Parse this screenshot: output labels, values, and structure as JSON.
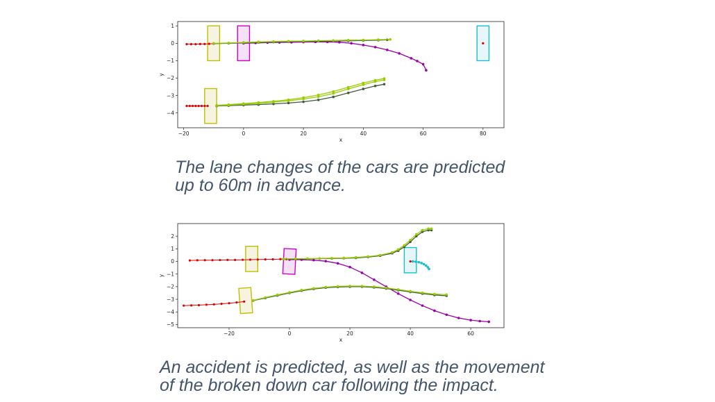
{
  "chart_data": [
    {
      "type": "scatter",
      "xlabel": "x",
      "ylabel": "y",
      "xlim": [
        -22,
        87
      ],
      "ylim": [
        -4.85,
        1.25
      ],
      "xticks": [
        -20,
        0,
        20,
        40,
        60,
        80
      ],
      "yticks": [
        1,
        0,
        -1,
        -2,
        -3,
        -4
      ],
      "xtick_labels": [
        "−20",
        "0",
        "20",
        "40",
        "60",
        "80"
      ],
      "ytick_labels": [
        "1",
        "0",
        "−1",
        "−2",
        "−3",
        "−4"
      ],
      "grid": false,
      "legend": "none",
      "vehicles": [
        {
          "x": -10,
          "y": 0,
          "length": 4,
          "width": 2,
          "angle_deg": 0,
          "color": "#bfbf00",
          "fill": "#f4f2dc"
        },
        {
          "x": 0,
          "y": 0,
          "length": 4,
          "width": 2,
          "angle_deg": 0,
          "color": "#cc00cc",
          "fill": "#f3dcf3"
        },
        {
          "x": 80,
          "y": 0,
          "length": 4,
          "width": 2,
          "angle_deg": 0,
          "color": "#17becf",
          "fill": "#e3f5f8"
        },
        {
          "x": -11,
          "y": -3.6,
          "length": 4,
          "width": 2,
          "angle_deg": 0,
          "color": "#bfbf00",
          "fill": "#f4f2dc"
        }
      ],
      "series": [
        {
          "role": "history",
          "color": "#e00000",
          "points": [
            [
              -19,
              -0.05
            ],
            [
              -17.5,
              -0.05
            ],
            [
              -16,
              -0.05
            ],
            [
              -14.5,
              -0.04
            ],
            [
              -13,
              -0.04
            ],
            [
              -11.5,
              -0.03
            ],
            [
              -10,
              -0.02
            ]
          ]
        },
        {
          "role": "history",
          "color": "#e00000",
          "points": [
            [
              -19,
              -3.6
            ],
            [
              -18,
              -3.6
            ],
            [
              -17,
              -3.6
            ],
            [
              -16,
              -3.6
            ],
            [
              -15,
              -3.6
            ],
            [
              -14,
              -3.6
            ],
            [
              -13,
              -3.6
            ],
            [
              -12,
              -3.6
            ]
          ]
        },
        {
          "role": "history",
          "color": "#e00000",
          "points": [
            [
              80,
              0
            ]
          ]
        },
        {
          "role": "prediction",
          "color": "#9900aa",
          "points": [
            [
              0,
              0
            ],
            [
              4,
              0.02
            ],
            [
              8,
              0.04
            ],
            [
              12,
              0.05
            ],
            [
              16,
              0.06
            ],
            [
              20,
              0.07
            ],
            [
              24,
              0.08
            ],
            [
              28,
              0.08
            ],
            [
              32,
              0.06
            ],
            [
              36,
              0
            ],
            [
              40,
              -0.1
            ],
            [
              44,
              -0.22
            ],
            [
              48,
              -0.38
            ],
            [
              52,
              -0.58
            ],
            [
              56,
              -0.86
            ],
            [
              58,
              -1.02
            ],
            [
              60,
              -1.2
            ],
            [
              61,
              -1.55
            ]
          ]
        },
        {
          "role": "prediction",
          "color": "#3d5a3d",
          "points": [
            [
              -10,
              -0.02
            ],
            [
              -5,
              0
            ],
            [
              0,
              0.02
            ],
            [
              5,
              0.05
            ],
            [
              10,
              0.07
            ],
            [
              15,
              0.09
            ],
            [
              20,
              0.11
            ],
            [
              25,
              0.12
            ],
            [
              30,
              0.13
            ],
            [
              35,
              0.14
            ],
            [
              40,
              0.16
            ],
            [
              45,
              0.18
            ],
            [
              48,
              0.2
            ]
          ]
        },
        {
          "role": "prediction",
          "color": "#99cc00",
          "points": [
            [
              -10,
              0
            ],
            [
              -5,
              0.02
            ],
            [
              0,
              0.05
            ],
            [
              5,
              0.08
            ],
            [
              10,
              0.1
            ],
            [
              15,
              0.12
            ],
            [
              20,
              0.13
            ],
            [
              25,
              0.15
            ],
            [
              30,
              0.16
            ],
            [
              35,
              0.18
            ],
            [
              40,
              0.19
            ],
            [
              45,
              0.21
            ],
            [
              49,
              0.22
            ]
          ]
        },
        {
          "role": "prediction",
          "color": "#3d5a3d",
          "points": [
            [
              -9,
              -3.6
            ],
            [
              -5,
              -3.58
            ],
            [
              0,
              -3.55
            ],
            [
              5,
              -3.52
            ],
            [
              10,
              -3.48
            ],
            [
              15,
              -3.43
            ],
            [
              20,
              -3.36
            ],
            [
              25,
              -3.25
            ],
            [
              30,
              -3.08
            ],
            [
              35,
              -2.85
            ],
            [
              40,
              -2.62
            ],
            [
              44,
              -2.45
            ],
            [
              47,
              -2.35
            ]
          ]
        },
        {
          "role": "prediction",
          "color": "#99cc00",
          "points": [
            [
              -9,
              -3.58
            ],
            [
              -5,
              -3.55
            ],
            [
              0,
              -3.5
            ],
            [
              5,
              -3.45
            ],
            [
              10,
              -3.38
            ],
            [
              15,
              -3.3
            ],
            [
              20,
              -3.2
            ],
            [
              25,
              -3.07
            ],
            [
              30,
              -2.88
            ],
            [
              35,
              -2.62
            ],
            [
              40,
              -2.38
            ],
            [
              44,
              -2.2
            ],
            [
              47,
              -2.1
            ]
          ]
        },
        {
          "role": "prediction",
          "color": "#99cc00",
          "points": [
            [
              -9,
              -3.56
            ],
            [
              -5,
              -3.52
            ],
            [
              0,
              -3.46
            ],
            [
              5,
              -3.4
            ],
            [
              10,
              -3.33
            ],
            [
              15,
              -3.24
            ],
            [
              20,
              -3.12
            ],
            [
              25,
              -2.97
            ],
            [
              30,
              -2.77
            ],
            [
              35,
              -2.52
            ],
            [
              40,
              -2.28
            ],
            [
              44,
              -2.12
            ],
            [
              47,
              -2.02
            ]
          ]
        }
      ]
    },
    {
      "type": "scatter",
      "xlabel": "x",
      "ylabel": "y",
      "xlim": [
        -37,
        71
      ],
      "ylim": [
        -5.25,
        3
      ],
      "xticks": [
        -20,
        0,
        20,
        40,
        60
      ],
      "yticks": [
        2,
        1,
        0,
        -1,
        -2,
        -3,
        -4,
        -5
      ],
      "xtick_labels": [
        "−20",
        "0",
        "20",
        "40",
        "60"
      ],
      "ytick_labels": [
        "2",
        "1",
        "0",
        "−1",
        "−2",
        "−3",
        "−4",
        "−5"
      ],
      "grid": false,
      "legend": "none",
      "vehicles": [
        {
          "x": -12.5,
          "y": 0.2,
          "length": 4,
          "width": 2,
          "angle_deg": 0,
          "color": "#bfbf00",
          "fill": "#f4f2dc"
        },
        {
          "x": 0,
          "y": 0,
          "length": 4,
          "width": 2,
          "angle_deg": -3,
          "color": "#cc00cc",
          "fill": "#f3dcf3"
        },
        {
          "x": 40,
          "y": 0.1,
          "length": 4,
          "width": 2,
          "angle_deg": 0,
          "color": "#17becf",
          "fill": "#e3f5f8"
        },
        {
          "x": -14.5,
          "y": -3.1,
          "length": 4,
          "width": 2,
          "angle_deg": 4,
          "color": "#bfbf00",
          "fill": "#f4f2dc"
        }
      ],
      "series": [
        {
          "role": "history",
          "color": "#e00000",
          "points": [
            [
              -33,
              0.08
            ],
            [
              -30.5,
              0.09
            ],
            [
              -28,
              0.1
            ],
            [
              -25.5,
              0.1
            ],
            [
              -23,
              0.11
            ],
            [
              -20.5,
              0.12
            ],
            [
              -18,
              0.12
            ],
            [
              -15.5,
              0.13
            ],
            [
              -13,
              0.14
            ],
            [
              -10.5,
              0.15
            ],
            [
              -8,
              0.16
            ],
            [
              -5.5,
              0.17
            ],
            [
              -3,
              0.18
            ],
            [
              -1,
              0.18
            ]
          ]
        },
        {
          "role": "history",
          "color": "#e00000",
          "points": [
            [
              -35,
              -3.5
            ],
            [
              -32.5,
              -3.48
            ],
            [
              -30,
              -3.46
            ],
            [
              -27.5,
              -3.43
            ],
            [
              -25,
              -3.4
            ],
            [
              -22.5,
              -3.36
            ],
            [
              -20,
              -3.31
            ],
            [
              -17.5,
              -3.25
            ],
            [
              -15,
              -3.18
            ]
          ]
        },
        {
          "role": "history",
          "color": "#e00000",
          "points": [
            [
              40,
              0
            ],
            [
              40.8,
              0
            ]
          ]
        },
        {
          "role": "prediction",
          "color": "#17becf",
          "points": [
            [
              40.8,
              0
            ],
            [
              41.8,
              -0.02
            ],
            [
              42.8,
              -0.06
            ],
            [
              43.7,
              -0.13
            ],
            [
              44.5,
              -0.22
            ],
            [
              45.2,
              -0.33
            ],
            [
              45.8,
              -0.46
            ],
            [
              46.2,
              -0.6
            ]
          ]
        },
        {
          "role": "prediction",
          "color": "#9900aa",
          "points": [
            [
              0,
              0.15
            ],
            [
              4,
              0.14
            ],
            [
              8,
              0.1
            ],
            [
              12,
              0.02
            ],
            [
              16,
              -0.15
            ],
            [
              20,
              -0.45
            ],
            [
              24,
              -0.9
            ],
            [
              28,
              -1.45
            ],
            [
              32,
              -2
            ],
            [
              36,
              -2.55
            ],
            [
              40,
              -3.05
            ],
            [
              44,
              -3.5
            ],
            [
              48,
              -3.9
            ],
            [
              52,
              -4.22
            ],
            [
              56,
              -4.48
            ],
            [
              60,
              -4.65
            ],
            [
              63,
              -4.73
            ],
            [
              66,
              -4.78
            ]
          ]
        },
        {
          "role": "prediction",
          "color": "#3d5a3d",
          "points": [
            [
              -2,
              0.18
            ],
            [
              2,
              0.2
            ],
            [
              6,
              0.21
            ],
            [
              10,
              0.22
            ],
            [
              14,
              0.23
            ],
            [
              18,
              0.25
            ],
            [
              22,
              0.28
            ],
            [
              26,
              0.35
            ],
            [
              30,
              0.45
            ],
            [
              34,
              0.65
            ],
            [
              36,
              0.85
            ],
            [
              38,
              1.15
            ],
            [
              40,
              1.55
            ],
            [
              42,
              2
            ],
            [
              44,
              2.35
            ],
            [
              46,
              2.48
            ],
            [
              47,
              2.48
            ]
          ]
        },
        {
          "role": "prediction",
          "color": "#99cc00",
          "points": [
            [
              -2,
              0.2
            ],
            [
              2,
              0.22
            ],
            [
              6,
              0.23
            ],
            [
              10,
              0.24
            ],
            [
              14,
              0.26
            ],
            [
              18,
              0.28
            ],
            [
              22,
              0.32
            ],
            [
              26,
              0.39
            ],
            [
              30,
              0.5
            ],
            [
              34,
              0.72
            ],
            [
              36,
              0.95
            ],
            [
              38,
              1.28
            ],
            [
              40,
              1.7
            ],
            [
              42,
              2.15
            ],
            [
              44,
              2.48
            ],
            [
              46,
              2.6
            ],
            [
              47,
              2.6
            ]
          ]
        },
        {
          "role": "prediction",
          "color": "#3d5a3d",
          "points": [
            [
              -12,
              -3.1
            ],
            [
              -8,
              -2.9
            ],
            [
              -4,
              -2.7
            ],
            [
              0,
              -2.5
            ],
            [
              4,
              -2.32
            ],
            [
              8,
              -2.18
            ],
            [
              12,
              -2.08
            ],
            [
              16,
              -2.02
            ],
            [
              20,
              -2
            ],
            [
              24,
              -2
            ],
            [
              28,
              -2.05
            ],
            [
              32,
              -2.15
            ],
            [
              36,
              -2.28
            ],
            [
              40,
              -2.42
            ],
            [
              44,
              -2.55
            ],
            [
              48,
              -2.66
            ],
            [
              52,
              -2.72
            ]
          ]
        },
        {
          "role": "prediction",
          "color": "#99cc00",
          "points": [
            [
              -12,
              -3.08
            ],
            [
              -8,
              -2.86
            ],
            [
              -4,
              -2.65
            ],
            [
              0,
              -2.45
            ],
            [
              4,
              -2.27
            ],
            [
              8,
              -2.13
            ],
            [
              12,
              -2.03
            ],
            [
              16,
              -1.97
            ],
            [
              20,
              -1.95
            ],
            [
              24,
              -1.95
            ],
            [
              28,
              -2
            ],
            [
              32,
              -2.1
            ],
            [
              36,
              -2.22
            ],
            [
              40,
              -2.36
            ],
            [
              44,
              -2.48
            ],
            [
              48,
              -2.58
            ],
            [
              52,
              -2.63
            ]
          ]
        }
      ]
    }
  ],
  "captions": {
    "top": [
      "The lane changes of the cars are predicted",
      "up to 60m in advance."
    ],
    "bottom": [
      "An accident is predicted, as well as the movement",
      "of the broken down car following the impact."
    ]
  }
}
